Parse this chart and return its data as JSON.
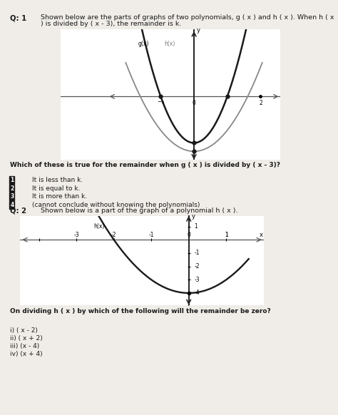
{
  "bg_color": "#f0ede8",
  "text_color": "#1a1a1a",
  "q1_label": "Q: 1",
  "q1_text1": "Shown below are the parts of graphs of two polynomials, g ( x ) and h ( x ). When h ( x",
  "q1_text2": ") is divided by ( x - 3), the remainder is k.",
  "q1_question": "Which of these is true for the remainder when g ( x ) is divided by ( x - 3)?",
  "q1_options": [
    "It is less than k.",
    "It is equal to k.",
    "It is more than k.",
    "(cannot conclude without knowing the polynomials)"
  ],
  "q2_label": "Q: 2",
  "q2_text": "Shown below is a part of the graph of a polynomial h ( x ).",
  "q2_question": "On dividing h ( x ) by which of the following will the remainder be zero?",
  "q2_options": [
    "i) ( x - 2)",
    "ii) ( x + 2)",
    "iii) (x - 4)",
    "iv) (x + 4)"
  ],
  "graph1_bg": "#ffffff",
  "graph2_bg": "#ffffff",
  "curve1_g_color": "#1a1a1a",
  "curve1_h_color": "#888888",
  "curve2_color": "#1a1a1a",
  "axis_color": "#444444",
  "dot_color": "#1a1a1a"
}
